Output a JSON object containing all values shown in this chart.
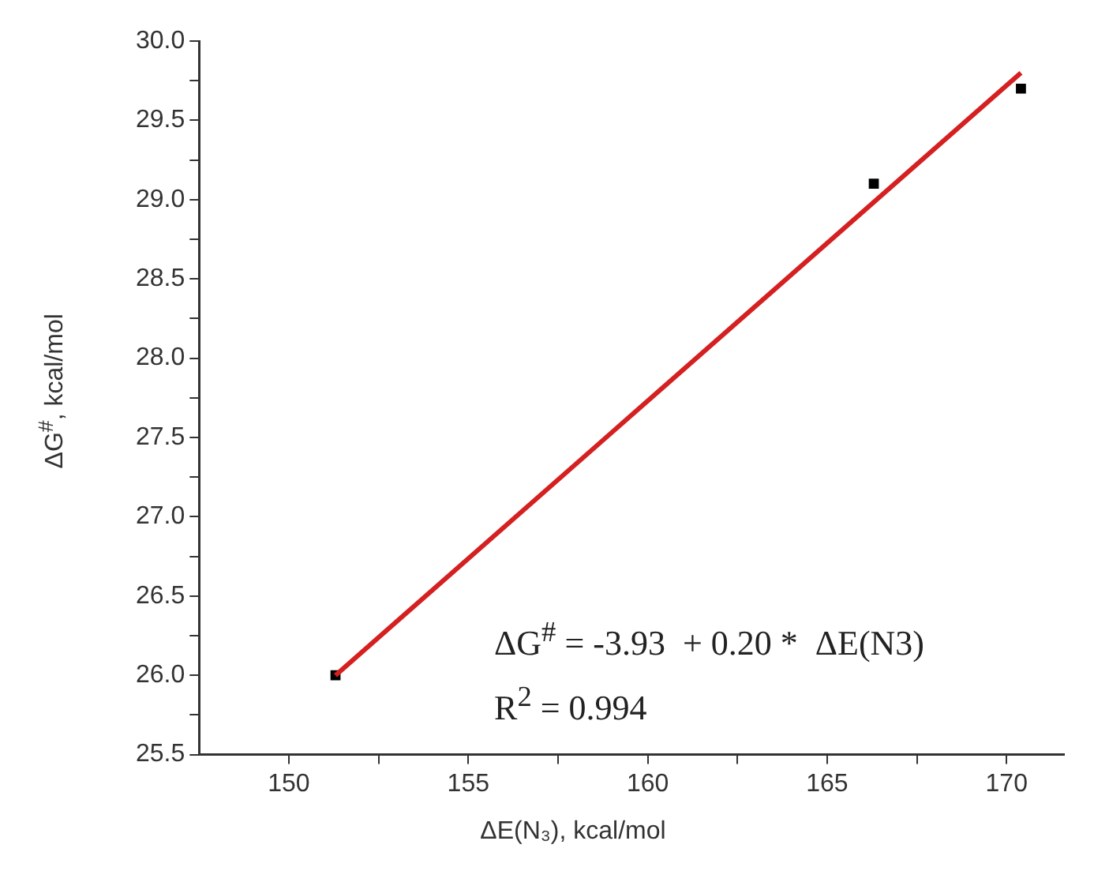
{
  "chart_data": {
    "type": "scatter",
    "xlabel": "ΔE(N₃), kcal/mol",
    "ylabel": "ΔG$^{#}$, kcal/mol",
    "annotations": [
      "ΔG$^{#}$ = -3.93  + 0.20 *  ΔE(N3)",
      "R$^{2}$ = 0.994"
    ],
    "xlim": [
      147.5,
      171.6
    ],
    "xticks": [
      150,
      {
        "value": 152.5,
        "label": null
      },
      155,
      {
        "value": 157.5,
        "label": null
      },
      160,
      {
        "value": 162.5,
        "label": null
      },
      165,
      {
        "value": 167.5,
        "label": null
      },
      170
    ],
    "ylim": [
      25.5,
      30
    ],
    "yticks": [
      {
        "value": 25.5,
        "label": "25.5"
      },
      {
        "value": 25.75,
        "label": null
      },
      {
        "value": 26,
        "label": "26.0"
      },
      {
        "value": 26.25,
        "label": null
      },
      {
        "value": 26.5,
        "label": "26.5"
      },
      {
        "value": 26.75,
        "label": null
      },
      {
        "value": 27,
        "label": "27.0"
      },
      {
        "value": 27.25,
        "label": null
      },
      {
        "value": 27.5,
        "label": "27.5"
      },
      {
        "value": 27.75,
        "label": null
      },
      {
        "value": 28,
        "label": "28.0"
      },
      {
        "value": 28.25,
        "label": null
      },
      {
        "value": 28.5,
        "label": "28.5"
      },
      {
        "value": 28.75,
        "label": null
      },
      {
        "value": 29,
        "label": "29.0"
      },
      {
        "value": 29.25,
        "label": null
      },
      {
        "value": 29.5,
        "label": "29.5"
      },
      {
        "value": 29.75,
        "label": null
      },
      {
        "value": 30,
        "label": "30.0"
      }
    ],
    "series": [
      {
        "color": "#000000",
        "marker": "square",
        "x": [
          151.3,
          166.3,
          170.4
        ],
        "values": [
          26.0,
          29.1,
          29.7
        ]
      },
      {
        "type": "line",
        "color": "#d42020",
        "marker": "none",
        "x": [
          151.3,
          170.4
        ],
        "values": [
          26.0,
          29.8
        ]
      }
    ]
  }
}
